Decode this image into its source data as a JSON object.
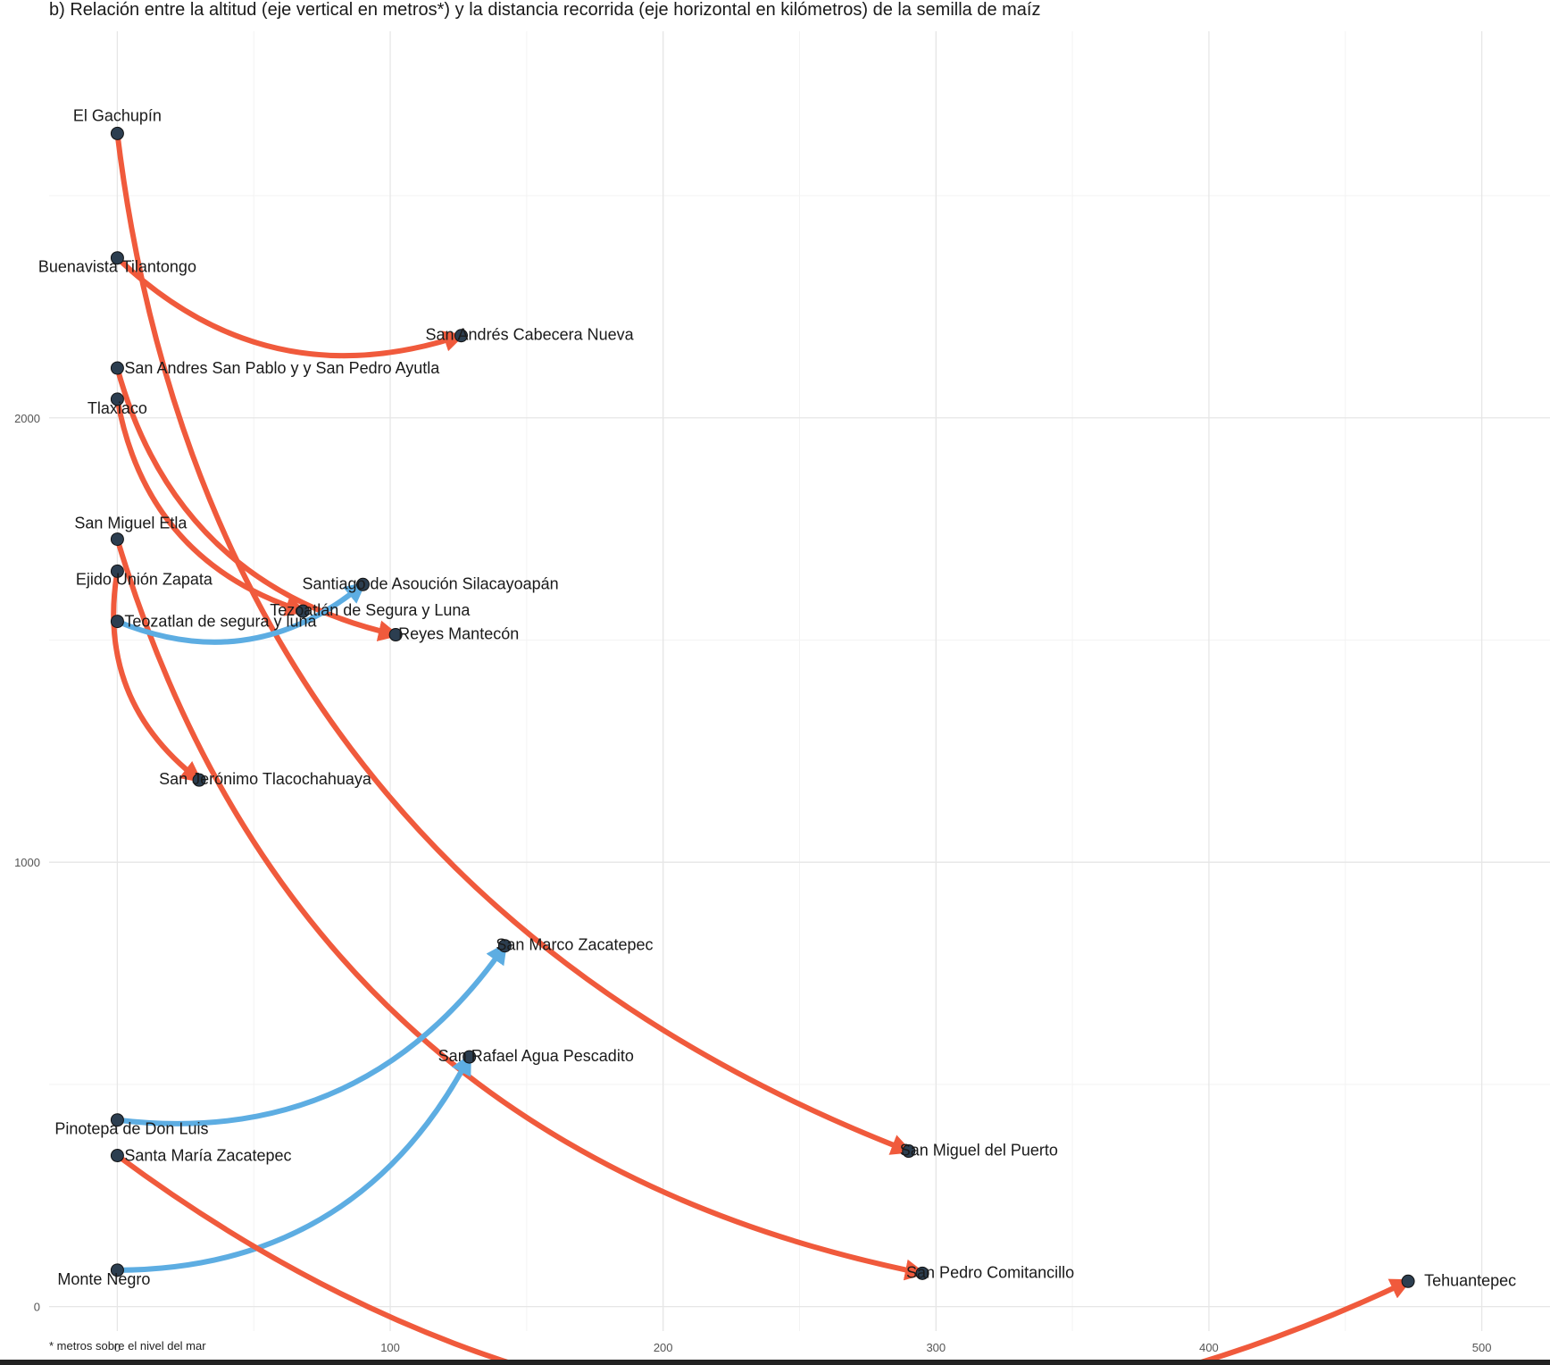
{
  "chart_data": {
    "type": "line",
    "title": "b) Relación entre la altitud (eje vertical en metros*) y la distancia recorrida (eje horizontal en kilómetros) de la semilla de maíz",
    "footnote": "* metros sobre el nivel del mar",
    "xlabel": "",
    "ylabel": "",
    "xlim": [
      -25,
      525
    ],
    "ylim": [
      -55,
      2870
    ],
    "xticks": [
      0,
      100,
      200,
      300,
      400,
      500
    ],
    "yticks": [
      0,
      1000,
      2000
    ],
    "grid": true,
    "legend": "none",
    "colors": {
      "decrease": "#f05a3c",
      "increase": "#5dade2",
      "point": "#2c3e50"
    },
    "points": [
      {
        "label": "El Gachupín",
        "x": 0,
        "y": 2640
      },
      {
        "label": "Buenavista Tilantongo",
        "x": 0,
        "y": 2360
      },
      {
        "label": "San Andrés Cabecera Nueva",
        "x": 126,
        "y": 2185
      },
      {
        "label": "San Andres San Pablo y y San Pedro Ayutla",
        "x": 0,
        "y": 2112
      },
      {
        "label": "Tlaxiaco",
        "x": 0,
        "y": 2042
      },
      {
        "label": "San Miguel Etla",
        "x": 0,
        "y": 1727
      },
      {
        "label": "Ejido Unión Zapata",
        "x": 0,
        "y": 1655
      },
      {
        "label": "Santiago de Asoución Silacayoapán",
        "x": 90,
        "y": 1625
      },
      {
        "label": "Tezoatlán de Segura y Luna",
        "x": 68,
        "y": 1565
      },
      {
        "label": "Teozatlan de segura y luna",
        "x": 0,
        "y": 1542
      },
      {
        "label": "Reyes Mantecón",
        "x": 102,
        "y": 1512
      },
      {
        "label": "San Jerónimo Tlacochahuaya",
        "x": 30,
        "y": 1185
      },
      {
        "label": "San Marco Zacatepec",
        "x": 142,
        "y": 812
      },
      {
        "label": "San Rafael Agua Pescadito",
        "x": 129,
        "y": 562
      },
      {
        "label": "Pinotepa de Don Luis",
        "x": 0,
        "y": 420
      },
      {
        "label": "Santa María Zacatepec",
        "x": 0,
        "y": 340
      },
      {
        "label": "San Miguel del Puerto",
        "x": 290,
        "y": 350
      },
      {
        "label": "Monte Negro",
        "x": 0,
        "y": 82
      },
      {
        "label": "San Pedro Comitancillo",
        "x": 295,
        "y": 75
      },
      {
        "label": "Tehuantepec",
        "x": 473,
        "y": 57
      }
    ],
    "series": [
      {
        "from": "El Gachupín",
        "to": "San Miguel del Puerto",
        "type": "decrease"
      },
      {
        "from": "Buenavista Tilantongo",
        "to": "San Andrés Cabecera Nueva",
        "type": "decrease"
      },
      {
        "from": "San Andres San Pablo y y San Pedro Ayutla",
        "to": "Reyes Mantecón",
        "type": "decrease"
      },
      {
        "from": "Tlaxiaco",
        "to": "Tezoatlán de Segura y Luna",
        "type": "decrease"
      },
      {
        "from": "San Miguel Etla",
        "to": "San Pedro Comitancillo",
        "type": "decrease"
      },
      {
        "from": "Ejido Unión Zapata",
        "to": "San Jerónimo Tlacochahuaya",
        "type": "decrease"
      },
      {
        "from": "Teozatlan de segura y luna",
        "to": "Santiago de Asoución Silacayoapán",
        "type": "increase"
      },
      {
        "from": "Pinotepa de Don Luis",
        "to": "San Marco Zacatepec",
        "type": "increase"
      },
      {
        "from": "Monte Negro",
        "to": "San Rafael Agua Pescadito",
        "type": "increase"
      },
      {
        "from": "Santa María Zacatepec",
        "to": "Tehuantepec",
        "type": "decrease"
      }
    ]
  }
}
